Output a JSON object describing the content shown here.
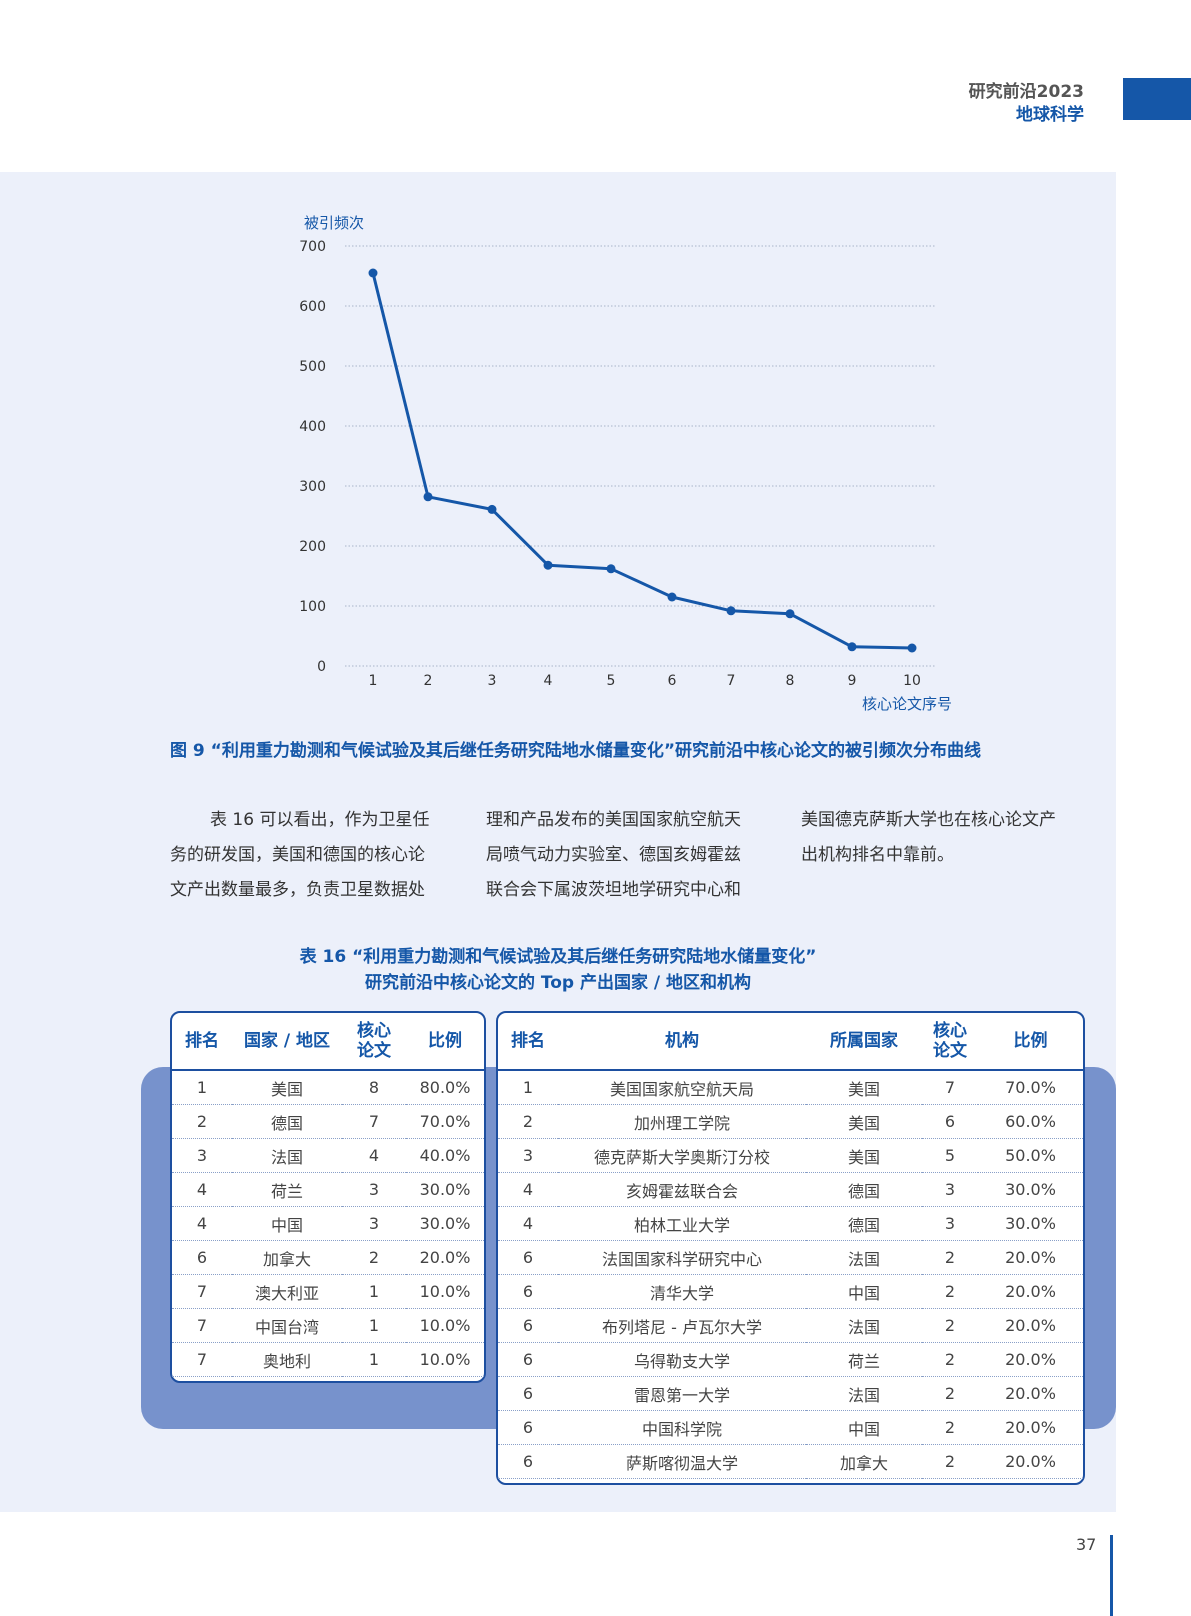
{
  "header": {
    "line1": "研究前沿2023",
    "line2": "地球科学"
  },
  "chart_data": {
    "type": "line",
    "ylabel": "被引频次",
    "xlabel": "核心论文序号",
    "ylim": [
      0,
      700
    ],
    "yticks": [
      0,
      100,
      200,
      300,
      400,
      500,
      600,
      700
    ],
    "grid": true,
    "x": [
      1,
      2,
      3,
      4,
      5,
      6,
      7,
      8,
      9,
      10
    ],
    "values": [
      655,
      282,
      261,
      168,
      162,
      115,
      92,
      87,
      32,
      30
    ],
    "color": "#1557a8"
  },
  "figure_caption": "图 9 “利用重力勘测和气候试验及其后继任务研究陆地水储量变化”研究前沿中核心论文的被引频次分布曲线",
  "body_text": {
    "col1": [
      "表 16 可以看出，作为卫星任",
      "务的研发国，美国和德国的核心论",
      "文产出数量最多，负责卫星数据处"
    ],
    "col2": [
      "理和产品发布的美国国家航空航天",
      "局喷气动力实验室、德国亥姆霍兹",
      "联合会下属波茨坦地学研究中心和"
    ],
    "col3": [
      "美国德克萨斯大学也在核心论文产",
      "出机构排名中靠前。"
    ]
  },
  "table_title": {
    "line1": "表 16 “利用重力勘测和气候试验及其后继任务研究陆地水储量变化”",
    "line2": "研究前沿中核心论文的 Top 产出国家 / 地区和机构"
  },
  "country_table": {
    "headers": [
      "排名",
      "国家 / 地区",
      "核心论文",
      "比例"
    ],
    "rows": [
      [
        "1",
        "美国",
        "8",
        "80.0%"
      ],
      [
        "2",
        "德国",
        "7",
        "70.0%"
      ],
      [
        "3",
        "法国",
        "4",
        "40.0%"
      ],
      [
        "4",
        "荷兰",
        "3",
        "30.0%"
      ],
      [
        "4",
        "中国",
        "3",
        "30.0%"
      ],
      [
        "6",
        "加拿大",
        "2",
        "20.0%"
      ],
      [
        "7",
        "澳大利亚",
        "1",
        "10.0%"
      ],
      [
        "7",
        "中国台湾",
        "1",
        "10.0%"
      ],
      [
        "7",
        "奥地利",
        "1",
        "10.0%"
      ]
    ]
  },
  "institution_table": {
    "headers": [
      "排名",
      "机构",
      "所属国家",
      "核心论文",
      "比例"
    ],
    "rows": [
      [
        "1",
        "美国国家航空航天局",
        "美国",
        "7",
        "70.0%"
      ],
      [
        "2",
        "加州理工学院",
        "美国",
        "6",
        "60.0%"
      ],
      [
        "3",
        "德克萨斯大学奥斯汀分校",
        "美国",
        "5",
        "50.0%"
      ],
      [
        "4",
        "亥姆霍兹联合会",
        "德国",
        "3",
        "30.0%"
      ],
      [
        "4",
        "柏林工业大学",
        "德国",
        "3",
        "30.0%"
      ],
      [
        "6",
        "法国国家科学研究中心",
        "法国",
        "2",
        "20.0%"
      ],
      [
        "6",
        "清华大学",
        "中国",
        "2",
        "20.0%"
      ],
      [
        "6",
        "布列塔尼 - 卢瓦尔大学",
        "法国",
        "2",
        "20.0%"
      ],
      [
        "6",
        "乌得勒支大学",
        "荷兰",
        "2",
        "20.0%"
      ],
      [
        "6",
        "雷恩第一大学",
        "法国",
        "2",
        "20.0%"
      ],
      [
        "6",
        "中国科学院",
        "中国",
        "2",
        "20.0%"
      ],
      [
        "6",
        "萨斯喀彻温大学",
        "加拿大",
        "2",
        "20.0%"
      ]
    ]
  },
  "page_number": "37"
}
